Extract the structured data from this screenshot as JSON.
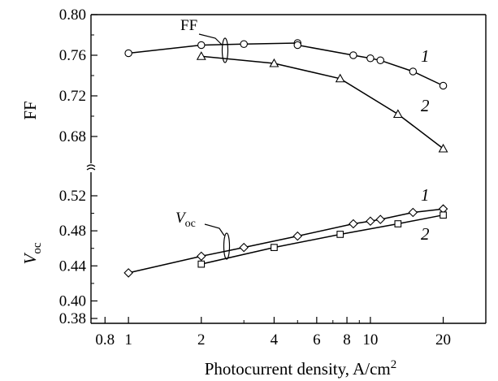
{
  "chart_data": [
    {
      "type": "line",
      "panel": "top",
      "ylabel": "FF",
      "xscale": "log",
      "xlim": [
        0.7,
        30
      ],
      "ylim": [
        0.65,
        0.8
      ],
      "yticks": [
        0.68,
        0.72,
        0.76,
        0.8
      ],
      "ytick_labels": [
        "0.68",
        "0.72",
        "0.76",
        "0.80"
      ],
      "group_label": "FF",
      "series": [
        {
          "name": "1",
          "marker": "circle",
          "x": [
            1,
            2,
            3,
            5,
            5,
            8.5,
            10,
            11,
            15,
            20
          ],
          "y": [
            0.762,
            0.77,
            0.771,
            0.772,
            0.77,
            0.76,
            0.757,
            0.755,
            0.744,
            0.73
          ]
        },
        {
          "name": "2",
          "marker": "triangle",
          "x": [
            2,
            4,
            7.5,
            13,
            20
          ],
          "y": [
            0.759,
            0.752,
            0.737,
            0.702,
            0.668
          ]
        }
      ]
    },
    {
      "type": "line",
      "panel": "bottom",
      "ylabel": "V",
      "ylabel_sub": "oc",
      "xscale": "log",
      "xlim": [
        0.7,
        30
      ],
      "ylim": [
        0.375,
        0.54
      ],
      "yticks": [
        0.38,
        0.4,
        0.44,
        0.48,
        0.52
      ],
      "ytick_labels": [
        "0.38",
        "0.40",
        "0.44",
        "0.48",
        "0.52"
      ],
      "group_label": "V",
      "group_label_sub": "oc",
      "series": [
        {
          "name": "1",
          "marker": "diamond",
          "x": [
            1,
            2,
            3,
            5,
            8.5,
            10,
            11,
            15,
            20
          ],
          "y": [
            0.432,
            0.451,
            0.461,
            0.474,
            0.488,
            0.491,
            0.493,
            0.501,
            0.505
          ]
        },
        {
          "name": "2",
          "marker": "square",
          "x": [
            2,
            4,
            7.5,
            13,
            20
          ],
          "y": [
            0.442,
            0.461,
            0.476,
            0.488,
            0.498
          ]
        }
      ]
    }
  ],
  "xaxis": {
    "label": "Photocurrent density, A/cm",
    "label_sup": "2",
    "ticks": [
      0.8,
      1,
      2,
      4,
      6,
      8,
      10,
      20
    ],
    "tick_labels": [
      "0.8",
      "1",
      "2",
      "4",
      "6",
      "8",
      "10",
      "20"
    ]
  }
}
